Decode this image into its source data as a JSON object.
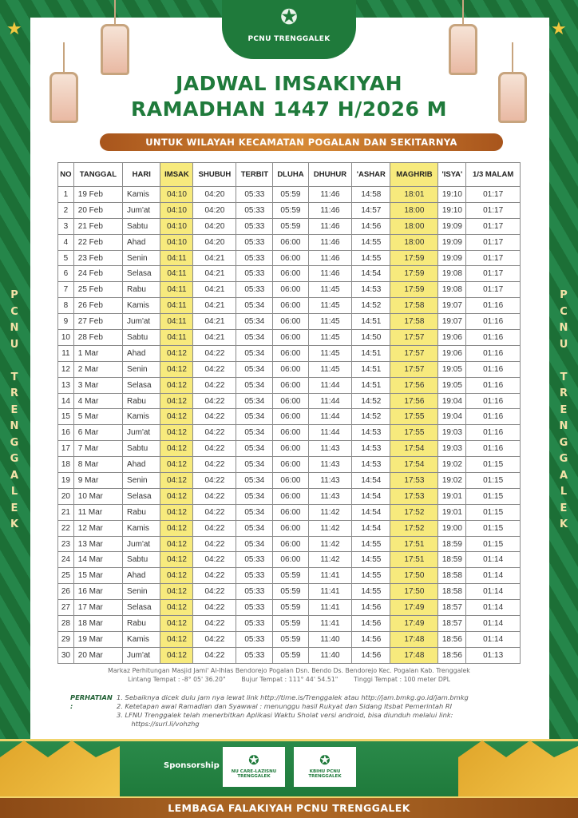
{
  "header": {
    "org_logo_text": "PCNU TRENGGALEK",
    "title_line1": "JADWAL IMSAKIYAH",
    "title_line2": "RAMADHAN 1447 H/2026 M",
    "subtitle": "UNTUK WILAYAH KECAMATAN POGALAN DAN SEKITARNYA",
    "side_text": "PCNU TRENGGALEK"
  },
  "table": {
    "columns": [
      "NO",
      "TANGGAL",
      "HARI",
      "IMSAK",
      "SHUBUH",
      "TERBIT",
      "DLUHA",
      "DHUHUR",
      "'ASHAR",
      "MAGHRIB",
      "'ISYA'",
      "1/3 MALAM"
    ],
    "highlight_color": "#f7ea7d",
    "rows": [
      [
        "1",
        "19 Feb",
        "Kamis",
        "04:10",
        "04:20",
        "05:33",
        "05:59",
        "11:46",
        "14:58",
        "18:01",
        "19:10",
        "01:17"
      ],
      [
        "2",
        "20 Feb",
        "Jum'at",
        "04:10",
        "04:20",
        "05:33",
        "05:59",
        "11:46",
        "14:57",
        "18:00",
        "19:10",
        "01:17"
      ],
      [
        "3",
        "21 Feb",
        "Sabtu",
        "04:10",
        "04:20",
        "05:33",
        "05:59",
        "11:46",
        "14:56",
        "18:00",
        "19:09",
        "01:17"
      ],
      [
        "4",
        "22 Feb",
        "Ahad",
        "04:10",
        "04:20",
        "05:33",
        "06:00",
        "11:46",
        "14:55",
        "18:00",
        "19:09",
        "01:17"
      ],
      [
        "5",
        "23 Feb",
        "Senin",
        "04:11",
        "04:21",
        "05:33",
        "06:00",
        "11:46",
        "14:55",
        "17:59",
        "19:09",
        "01:17"
      ],
      [
        "6",
        "24 Feb",
        "Selasa",
        "04:11",
        "04:21",
        "05:33",
        "06:00",
        "11:46",
        "14:54",
        "17:59",
        "19:08",
        "01:17"
      ],
      [
        "7",
        "25 Feb",
        "Rabu",
        "04:11",
        "04:21",
        "05:33",
        "06:00",
        "11:45",
        "14:53",
        "17:59",
        "19:08",
        "01:17"
      ],
      [
        "8",
        "26 Feb",
        "Kamis",
        "04:11",
        "04:21",
        "05:34",
        "06:00",
        "11:45",
        "14:52",
        "17:58",
        "19:07",
        "01:16"
      ],
      [
        "9",
        "27 Feb",
        "Jum'at",
        "04:11",
        "04:21",
        "05:34",
        "06:00",
        "11:45",
        "14:51",
        "17:58",
        "19:07",
        "01:16"
      ],
      [
        "10",
        "28 Feb",
        "Sabtu",
        "04:11",
        "04:21",
        "05:34",
        "06:00",
        "11:45",
        "14:50",
        "17:57",
        "19:06",
        "01:16"
      ],
      [
        "11",
        "1 Mar",
        "Ahad",
        "04:12",
        "04:22",
        "05:34",
        "06:00",
        "11:45",
        "14:51",
        "17:57",
        "19:06",
        "01:16"
      ],
      [
        "12",
        "2 Mar",
        "Senin",
        "04:12",
        "04:22",
        "05:34",
        "06:00",
        "11:45",
        "14:51",
        "17:57",
        "19:05",
        "01:16"
      ],
      [
        "13",
        "3 Mar",
        "Selasa",
        "04:12",
        "04:22",
        "05:34",
        "06:00",
        "11:44",
        "14:51",
        "17:56",
        "19:05",
        "01:16"
      ],
      [
        "14",
        "4 Mar",
        "Rabu",
        "04:12",
        "04:22",
        "05:34",
        "06:00",
        "11:44",
        "14:52",
        "17:56",
        "19:04",
        "01:16"
      ],
      [
        "15",
        "5 Mar",
        "Kamis",
        "04:12",
        "04:22",
        "05:34",
        "06:00",
        "11:44",
        "14:52",
        "17:55",
        "19:04",
        "01:16"
      ],
      [
        "16",
        "6 Mar",
        "Jum'at",
        "04:12",
        "04:22",
        "05:34",
        "06:00",
        "11:44",
        "14:53",
        "17:55",
        "19:03",
        "01:16"
      ],
      [
        "17",
        "7 Mar",
        "Sabtu",
        "04:12",
        "04:22",
        "05:34",
        "06:00",
        "11:43",
        "14:53",
        "17:54",
        "19:03",
        "01:16"
      ],
      [
        "18",
        "8 Mar",
        "Ahad",
        "04:12",
        "04:22",
        "05:34",
        "06:00",
        "11:43",
        "14:53",
        "17:54",
        "19:02",
        "01:15"
      ],
      [
        "19",
        "9 Mar",
        "Senin",
        "04:12",
        "04:22",
        "05:34",
        "06:00",
        "11:43",
        "14:54",
        "17:53",
        "19:02",
        "01:15"
      ],
      [
        "20",
        "10 Mar",
        "Selasa",
        "04:12",
        "04:22",
        "05:34",
        "06:00",
        "11:43",
        "14:54",
        "17:53",
        "19:01",
        "01:15"
      ],
      [
        "21",
        "11 Mar",
        "Rabu",
        "04:12",
        "04:22",
        "05:34",
        "06:00",
        "11:42",
        "14:54",
        "17:52",
        "19:01",
        "01:15"
      ],
      [
        "22",
        "12 Mar",
        "Kamis",
        "04:12",
        "04:22",
        "05:34",
        "06:00",
        "11:42",
        "14:54",
        "17:52",
        "19:00",
        "01:15"
      ],
      [
        "23",
        "13 Mar",
        "Jum'at",
        "04:12",
        "04:22",
        "05:34",
        "06:00",
        "11:42",
        "14:55",
        "17:51",
        "18:59",
        "01:15"
      ],
      [
        "24",
        "14 Mar",
        "Sabtu",
        "04:12",
        "04:22",
        "05:33",
        "06:00",
        "11:42",
        "14:55",
        "17:51",
        "18:59",
        "01:14"
      ],
      [
        "25",
        "15 Mar",
        "Ahad",
        "04:12",
        "04:22",
        "05:33",
        "05:59",
        "11:41",
        "14:55",
        "17:50",
        "18:58",
        "01:14"
      ],
      [
        "26",
        "16 Mar",
        "Senin",
        "04:12",
        "04:22",
        "05:33",
        "05:59",
        "11:41",
        "14:55",
        "17:50",
        "18:58",
        "01:14"
      ],
      [
        "27",
        "17 Mar",
        "Selasa",
        "04:12",
        "04:22",
        "05:33",
        "05:59",
        "11:41",
        "14:56",
        "17:49",
        "18:57",
        "01:14"
      ],
      [
        "28",
        "18 Mar",
        "Rabu",
        "04:12",
        "04:22",
        "05:33",
        "05:59",
        "11:41",
        "14:56",
        "17:49",
        "18:57",
        "01:14"
      ],
      [
        "29",
        "19 Mar",
        "Kamis",
        "04:12",
        "04:22",
        "05:33",
        "05:59",
        "11:40",
        "14:56",
        "17:48",
        "18:56",
        "01:14"
      ],
      [
        "30",
        "20 Mar",
        "Jum'at",
        "04:12",
        "04:22",
        "05:33",
        "05:59",
        "11:40",
        "14:56",
        "17:48",
        "18:56",
        "01:13"
      ]
    ]
  },
  "location": {
    "markaz": "Markaz Perhitungan Masjid Jami' Al-Ihlas Bendorejo Pogalan Dsn. Bendo Ds. Bendorejo Kec. Pogalan Kab. Trenggalek",
    "lintang": "Lintang  Tempat : -8° 05' 36.20\"",
    "bujur": "Bujur Tempat : 111° 44' 54.51\"",
    "tinggi": "Tinggi Tempat : 100 meter DPL"
  },
  "notes": {
    "label": "PERHATIAN :",
    "items": [
      "1.   Sebaiknya dicek dulu jam nya lewat link http://time.is/Trenggalek atau http://jam.bmkg.go.id/jam.bmkg",
      "2.   Ketetapan awal Ramadlan dan Syawwal : menunggu hasil Rukyat dan Sidang Itsbat Pemerintah RI",
      "3.   LFNU Trenggalek telah menerbitkan Aplikasi Waktu Sholat versi android, bisa diunduh melalui link:",
      "       https://surl.li/vohzhg"
    ]
  },
  "footer": {
    "sponsorship_label": "Sponsorship",
    "sponsors": [
      "NU CARE-LAZISNU TRENGGALEK",
      "KBIHU PCNU TRENGGALEK"
    ],
    "bottom_text": "LEMBAGA FALAKIYAH PCNU TRENGGALEK"
  },
  "colors": {
    "green": "#1f7a3b",
    "gold": "#f2c840",
    "brown": "#a8551c"
  }
}
